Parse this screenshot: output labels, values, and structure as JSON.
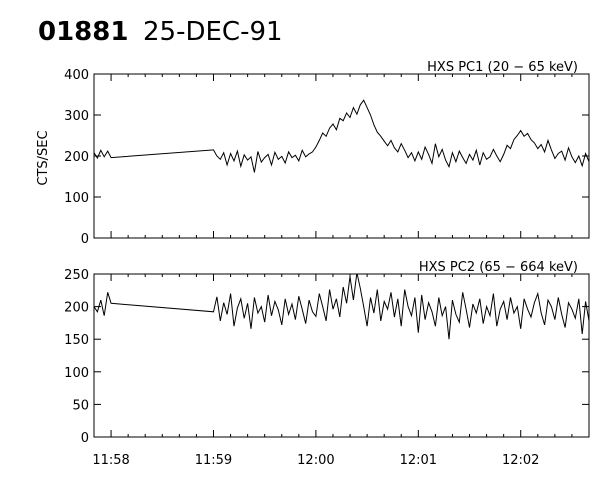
{
  "header": {
    "event_id": "01881",
    "date": "25-DEC-91"
  },
  "chart_data": [
    {
      "type": "line",
      "title": "HXS PC1 (20 − 65 keV)",
      "ylabel": "CTS/SEC",
      "xlabel": "",
      "ylim": [
        0,
        400
      ],
      "yticks": [
        0,
        100,
        200,
        300,
        400
      ],
      "xlim": [
        "11:57:50",
        "12:02:40"
      ],
      "xticks": [
        "11:58",
        "11:59",
        "12:00",
        "12:01",
        "12:02"
      ],
      "grid": false,
      "series": [
        {
          "x": [
            "11:57:50",
            "11:57:52",
            "11:57:54",
            "11:57:56",
            "11:57:58",
            "11:58:00",
            "11:59:00",
            "11:59:02",
            "11:59:04",
            "11:59:06",
            "11:59:08",
            "11:59:10",
            "11:59:12",
            "11:59:14",
            "11:59:16",
            "11:59:18",
            "11:59:20",
            "11:59:22",
            "11:59:24",
            "11:59:26",
            "11:59:28",
            "11:59:30",
            "11:59:32",
            "11:59:34",
            "11:59:36",
            "11:59:38",
            "11:59:40",
            "11:59:42",
            "11:59:44",
            "11:59:46",
            "11:59:48",
            "11:59:50",
            "11:59:52",
            "11:59:54",
            "11:59:56",
            "11:59:58",
            "12:00:00",
            "12:00:02",
            "12:00:04",
            "12:00:06",
            "12:00:08",
            "12:00:10",
            "12:00:12",
            "12:00:14",
            "12:00:16",
            "12:00:18",
            "12:00:20",
            "12:00:22",
            "12:00:24",
            "12:00:26",
            "12:00:28",
            "12:00:30",
            "12:00:32",
            "12:00:34",
            "12:00:36",
            "12:00:38",
            "12:00:40",
            "12:00:42",
            "12:00:44",
            "12:00:46",
            "12:00:48",
            "12:00:50",
            "12:00:52",
            "12:00:54",
            "12:00:56",
            "12:00:58",
            "12:01:00",
            "12:01:02",
            "12:01:04",
            "12:01:06",
            "12:01:08",
            "12:01:10",
            "12:01:12",
            "12:01:14",
            "12:01:16",
            "12:01:18",
            "12:01:20",
            "12:01:22",
            "12:01:24",
            "12:01:26",
            "12:01:28",
            "12:01:30",
            "12:01:32",
            "12:01:34",
            "12:01:36",
            "12:01:38",
            "12:01:40",
            "12:01:42",
            "12:01:44",
            "12:01:46",
            "12:01:48",
            "12:01:50",
            "12:01:52",
            "12:01:54",
            "12:01:56",
            "12:01:58",
            "12:02:00",
            "12:02:02",
            "12:02:04",
            "12:02:06",
            "12:02:08",
            "12:02:10",
            "12:02:12",
            "12:02:14",
            "12:02:16",
            "12:02:18",
            "12:02:20",
            "12:02:22",
            "12:02:24",
            "12:02:26",
            "12:02:28",
            "12:02:30",
            "12:02:32",
            "12:02:34",
            "12:02:36",
            "12:02:38",
            "12:02:40"
          ],
          "y": [
            208,
            195,
            214,
            198,
            212,
            196,
            215,
            200,
            192,
            208,
            178,
            206,
            188,
            212,
            175,
            203,
            190,
            198,
            160,
            211,
            185,
            196,
            204,
            178,
            209,
            192,
            199,
            183,
            210,
            196,
            202,
            188,
            214,
            198,
            205,
            210,
            222,
            238,
            256,
            248,
            268,
            278,
            264,
            292,
            286,
            305,
            294,
            318,
            302,
            325,
            336,
            318,
            300,
            276,
            258,
            248,
            236,
            225,
            238,
            220,
            210,
            230,
            214,
            196,
            208,
            188,
            210,
            192,
            222,
            204,
            182,
            230,
            198,
            216,
            190,
            174,
            208,
            186,
            212,
            196,
            182,
            204,
            190,
            214,
            178,
            208,
            192,
            198,
            216,
            200,
            186,
            204,
            226,
            218,
            240,
            250,
            262,
            248,
            255,
            240,
            232,
            218,
            228,
            210,
            238,
            215,
            194,
            206,
            212,
            190,
            220,
            198,
            184,
            200,
            176,
            206,
            186
          ]
        }
      ]
    },
    {
      "type": "line",
      "title": "HXS PC2 (65 − 664 keV)",
      "ylabel": "",
      "xlabel": "",
      "ylim": [
        0,
        250
      ],
      "yticks": [
        0,
        50,
        100,
        150,
        200,
        250
      ],
      "xlim": [
        "11:57:50",
        "12:02:40"
      ],
      "xticks": [
        "11:58",
        "11:59",
        "12:00",
        "12:01",
        "12:02"
      ],
      "grid": false,
      "series": [
        {
          "x": [
            "11:57:50",
            "11:57:52",
            "11:57:54",
            "11:57:56",
            "11:57:58",
            "11:58:00",
            "11:59:00",
            "11:59:02",
            "11:59:04",
            "11:59:06",
            "11:59:08",
            "11:59:10",
            "11:59:12",
            "11:59:14",
            "11:59:16",
            "11:59:18",
            "11:59:20",
            "11:59:22",
            "11:59:24",
            "11:59:26",
            "11:59:28",
            "11:59:30",
            "11:59:32",
            "11:59:34",
            "11:59:36",
            "11:59:38",
            "11:59:40",
            "11:59:42",
            "11:59:44",
            "11:59:46",
            "11:59:48",
            "11:59:50",
            "11:59:52",
            "11:59:54",
            "11:59:56",
            "11:59:58",
            "12:00:00",
            "12:00:02",
            "12:00:04",
            "12:00:06",
            "12:00:08",
            "12:00:10",
            "12:00:12",
            "12:00:14",
            "12:00:16",
            "12:00:18",
            "12:00:20",
            "12:00:22",
            "12:00:24",
            "12:00:26",
            "12:00:28",
            "12:00:30",
            "12:00:32",
            "12:00:34",
            "12:00:36",
            "12:00:38",
            "12:00:40",
            "12:00:42",
            "12:00:44",
            "12:00:46",
            "12:00:48",
            "12:00:50",
            "12:00:52",
            "12:00:54",
            "12:00:56",
            "12:00:58",
            "12:01:00",
            "12:01:02",
            "12:01:04",
            "12:01:06",
            "12:01:08",
            "12:01:10",
            "12:01:12",
            "12:01:14",
            "12:01:16",
            "12:01:18",
            "12:01:20",
            "12:01:22",
            "12:01:24",
            "12:01:26",
            "12:01:28",
            "12:01:30",
            "12:01:32",
            "12:01:34",
            "12:01:36",
            "12:01:38",
            "12:01:40",
            "12:01:42",
            "12:01:44",
            "12:01:46",
            "12:01:48",
            "12:01:50",
            "12:01:52",
            "12:01:54",
            "12:01:56",
            "12:01:58",
            "12:02:00",
            "12:02:02",
            "12:02:04",
            "12:02:06",
            "12:02:08",
            "12:02:10",
            "12:02:12",
            "12:02:14",
            "12:02:16",
            "12:02:18",
            "12:02:20",
            "12:02:22",
            "12:02:24",
            "12:02:26",
            "12:02:28",
            "12:02:30",
            "12:02:32",
            "12:02:34",
            "12:02:36",
            "12:02:38",
            "12:02:40"
          ],
          "y": [
            200,
            192,
            210,
            186,
            222,
            205,
            192,
            215,
            178,
            206,
            188,
            220,
            170,
            198,
            212,
            182,
            205,
            166,
            214,
            190,
            200,
            176,
            218,
            186,
            208,
            195,
            172,
            212,
            188,
            204,
            180,
            216,
            196,
            174,
            210,
            192,
            185,
            220,
            200,
            178,
            226,
            196,
            212,
            184,
            230,
            205,
            246,
            210,
            252,
            228,
            200,
            170,
            214,
            190,
            226,
            178,
            208,
            196,
            222,
            184,
            212,
            170,
            226,
            200,
            186,
            214,
            160,
            218,
            180,
            206,
            192,
            170,
            214,
            186,
            200,
            150,
            210,
            188,
            176,
            222,
            196,
            168,
            204,
            190,
            212,
            174,
            200,
            186,
            220,
            170,
            196,
            208,
            180,
            214,
            190,
            200,
            166,
            212,
            196,
            184,
            206,
            220,
            190,
            172,
            210,
            200,
            180,
            214,
            188,
            168,
            206,
            196,
            182,
            212,
            158,
            208,
            178
          ]
        }
      ]
    }
  ]
}
